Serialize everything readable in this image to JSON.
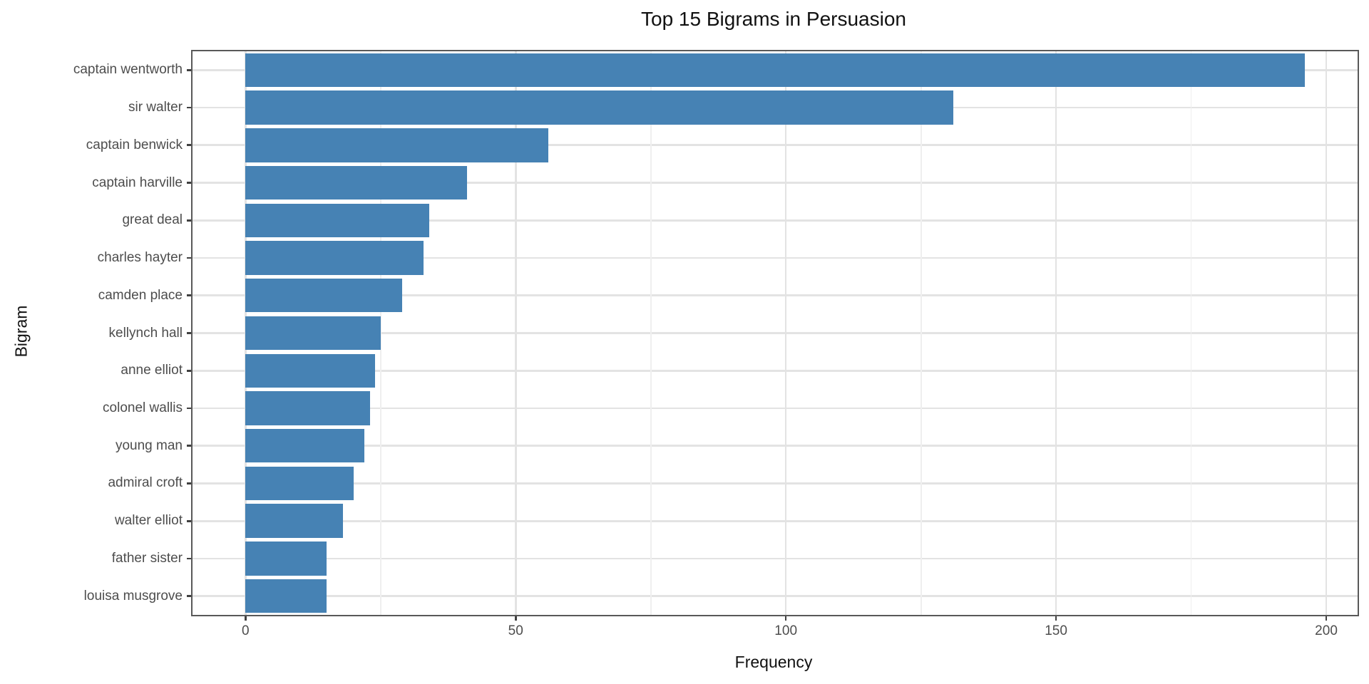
{
  "title": "Top 15 Bigrams in Persuasion",
  "colors": {
    "bar": "#4682B4",
    "grid_major": "#e3e3e3",
    "grid_minor": "#efefef",
    "panel_border": "#595959",
    "tick_text": "#4d4d4d",
    "title_text": "#111111"
  },
  "chart_data": {
    "type": "bar",
    "orientation": "horizontal",
    "title": "Top 15 Bigrams in Persuasion",
    "xlabel": "Frequency",
    "ylabel": "Bigram",
    "categories": [
      "captain wentworth",
      "sir walter",
      "captain benwick",
      "captain harville",
      "great deal",
      "charles hayter",
      "camden place",
      "kellynch hall",
      "anne elliot",
      "colonel wallis",
      "young man",
      "admiral croft",
      "walter elliot",
      "father sister",
      "louisa musgrove"
    ],
    "values": [
      196,
      131,
      56,
      41,
      34,
      33,
      29,
      25,
      24,
      23,
      22,
      20,
      18,
      15,
      15
    ],
    "x_major_ticks": [
      0,
      50,
      100,
      150,
      200
    ],
    "x_minor_ticks": [
      25,
      75,
      125,
      175
    ],
    "xlim": [
      -9.8,
      205.8
    ],
    "bar_width_ratio": 0.9,
    "grid": true,
    "legend": false
  }
}
